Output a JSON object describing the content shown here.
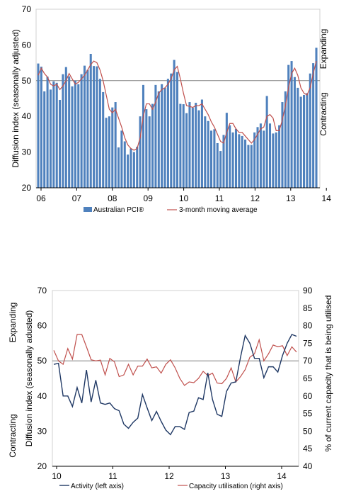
{
  "chart_data": [
    {
      "type": "bar",
      "ylabel": "Diffusion index (seasonally adjusted)",
      "ylim": [
        20,
        70
      ],
      "yticks": [
        20,
        30,
        40,
        50,
        60,
        70
      ],
      "x_tick_labels": [
        "06",
        "07",
        "08",
        "09",
        "10",
        "11",
        "12",
        "13",
        "14"
      ],
      "reference_line": 50,
      "right_labels": {
        "upper": "Expanding",
        "lower": "Contracting"
      },
      "grid": false,
      "legend_position": "bottom",
      "colors": {
        "bars": "#4f81bd",
        "line": "#c0504d",
        "ref": "#7f7f7f"
      },
      "series": [
        {
          "name": "Australian PCI®",
          "kind": "bar",
          "values": [
            54.8,
            53.9,
            47.0,
            51.1,
            47.5,
            49.8,
            49.4,
            44.6,
            51.8,
            53.8,
            51.2,
            48.4,
            50.0,
            49.0,
            51.8,
            54.2,
            53.0,
            57.5,
            54.1,
            54.0,
            50.5,
            46.8,
            39.6,
            40.0,
            42.5,
            44.0,
            31.3,
            36.0,
            33.0,
            29.3,
            31.0,
            30.0,
            31.5,
            40.0,
            48.8,
            42.0,
            40.0,
            43.5,
            48.8,
            47.0,
            49.0,
            48.0,
            50.5,
            52.0,
            55.8,
            52.4,
            43.5,
            43.4,
            40.9,
            44.0,
            42.4,
            43.8,
            41.7,
            44.7,
            40.0,
            38.7,
            36.0,
            36.4,
            32.5,
            30.3,
            34.8,
            41.0,
            37.5,
            35.5,
            36.5,
            35.0,
            34.5,
            33.5,
            32.0,
            32.0,
            35.5,
            37.0,
            38.0,
            36.0,
            45.7,
            38.0,
            35.2,
            35.5,
            37.5,
            44.0,
            47.0,
            54.4,
            55.5,
            51.0,
            48.0,
            45.5,
            46.0,
            46.5,
            52.0,
            54.9,
            59.2
          ]
        },
        {
          "name": "3-month moving average",
          "kind": "line",
          "values": [
            51.5,
            53.5,
            52.0,
            51.0,
            49.0,
            48.5,
            49.0,
            47.5,
            48.5,
            50.0,
            52.0,
            50.5,
            49.0,
            49.5,
            50.5,
            51.5,
            53.0,
            54.5,
            55.5,
            55.0,
            53.0,
            50.0,
            46.0,
            42.0,
            41.0,
            42.0,
            39.5,
            37.0,
            34.0,
            32.0,
            31.0,
            30.5,
            31.0,
            34.0,
            40.0,
            43.5,
            43.5,
            42.0,
            44.0,
            46.5,
            47.5,
            48.0,
            49.0,
            50.5,
            53.0,
            54.0,
            50.5,
            46.5,
            43.0,
            42.8,
            42.5,
            43.0,
            43.0,
            43.5,
            42.0,
            40.5,
            38.5,
            37.0,
            35.0,
            33.0,
            32.5,
            35.5,
            38.0,
            38.0,
            36.5,
            35.5,
            35.5,
            34.5,
            33.5,
            32.5,
            33.5,
            35.0,
            36.5,
            37.0,
            40.0,
            40.5,
            39.5,
            36.0,
            36.0,
            39.0,
            43.0,
            48.0,
            52.0,
            53.5,
            51.5,
            48.0,
            46.5,
            46.0,
            48.0,
            52.0,
            55.5
          ]
        }
      ]
    },
    {
      "type": "line",
      "ylabel_left": "Diffusion index (seasonally adusted)",
      "ylabel_right": "% of current capacity that is being utilised",
      "ylim_left": [
        20,
        70
      ],
      "ylim_right": [
        40,
        90
      ],
      "yticks_left": [
        20,
        30,
        40,
        50,
        60,
        70
      ],
      "yticks_right": [
        40,
        45,
        50,
        55,
        60,
        65,
        70,
        75,
        80,
        85,
        90
      ],
      "x_tick_labels": [
        "10",
        "11",
        "12",
        "13",
        "14"
      ],
      "reference_line": 50,
      "left_labels": {
        "upper": "Expanding",
        "lower": "Contracting"
      },
      "grid": false,
      "legend_position": "bottom",
      "colors": {
        "activity": "#1f3864",
        "capacity": "#c0504d",
        "ref": "#7f7f7f"
      },
      "series": [
        {
          "name": "Activity (left axis)",
          "axis": "left",
          "values": [
            49.0,
            49.3,
            40.0,
            40.0,
            37.0,
            42.4,
            38.0,
            47.4,
            38.3,
            44.5,
            38.0,
            37.6,
            38.0,
            36.4,
            35.8,
            32.0,
            30.8,
            32.5,
            33.7,
            40.4,
            36.6,
            33.0,
            35.6,
            32.8,
            30.3,
            29.0,
            31.3,
            31.3,
            30.5,
            35.3,
            35.7,
            39.5,
            39.0,
            46.6,
            39.0,
            34.8,
            34.2,
            41.3,
            43.7,
            44.0,
            51.0,
            57.2,
            55.0,
            50.7,
            50.7,
            45.2,
            48.3,
            48.3,
            46.8,
            51.5,
            55.0,
            57.5,
            57.0
          ]
        },
        {
          "name": "Capacity utilisation (right axis)",
          "axis": "right",
          "values": [
            73.0,
            70.0,
            69.0,
            73.5,
            70.5,
            77.5,
            77.5,
            74.0,
            70.3,
            70.0,
            70.2,
            66.0,
            70.7,
            69.7,
            65.5,
            66.0,
            69.0,
            66.0,
            68.5,
            68.5,
            70.5,
            68.0,
            68.3,
            66.5,
            69.0,
            70.3,
            68.0,
            65.0,
            63.0,
            64.0,
            63.8,
            65.0,
            67.0,
            65.8,
            66.5,
            63.7,
            63.5,
            65.0,
            68.0,
            64.0,
            65.5,
            67.5,
            71.0,
            72.0,
            76.0,
            70.0,
            72.0,
            74.5,
            74.0,
            74.3,
            71.5,
            74.0,
            72.5
          ]
        }
      ]
    }
  ]
}
